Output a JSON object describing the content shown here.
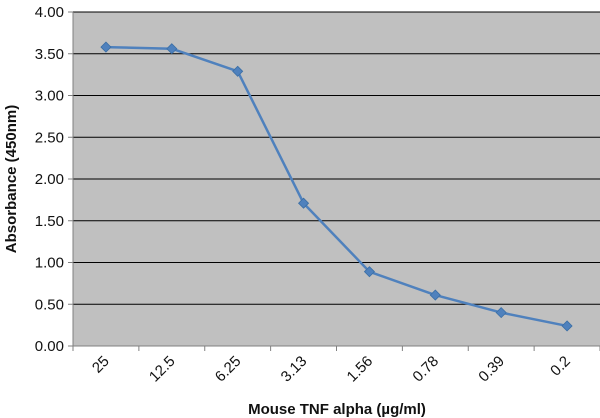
{
  "chart_data": {
    "type": "line",
    "title": "",
    "xlabel": "Mouse TNF alpha (µg/ml)",
    "ylabel": "Absorbance (450nm)",
    "categories": [
      "25",
      "12.5",
      "6.25",
      "3.13",
      "1.56",
      "0.78",
      "0.39",
      "0.2"
    ],
    "series": [
      {
        "values": [
          3.58,
          3.56,
          3.29,
          1.71,
          0.89,
          0.61,
          0.4,
          0.24
        ]
      }
    ],
    "ylim": [
      0,
      4
    ],
    "yticks": [
      "0.00",
      "0.50",
      "1.00",
      "1.50",
      "2.00",
      "2.50",
      "3.00",
      "3.50",
      "4.00"
    ],
    "grid": true,
    "legend": "none",
    "colors": {
      "plot_background": "#c0c0c0",
      "series": "#4f81bd",
      "grid": "#000000",
      "axis": "#808080"
    }
  }
}
